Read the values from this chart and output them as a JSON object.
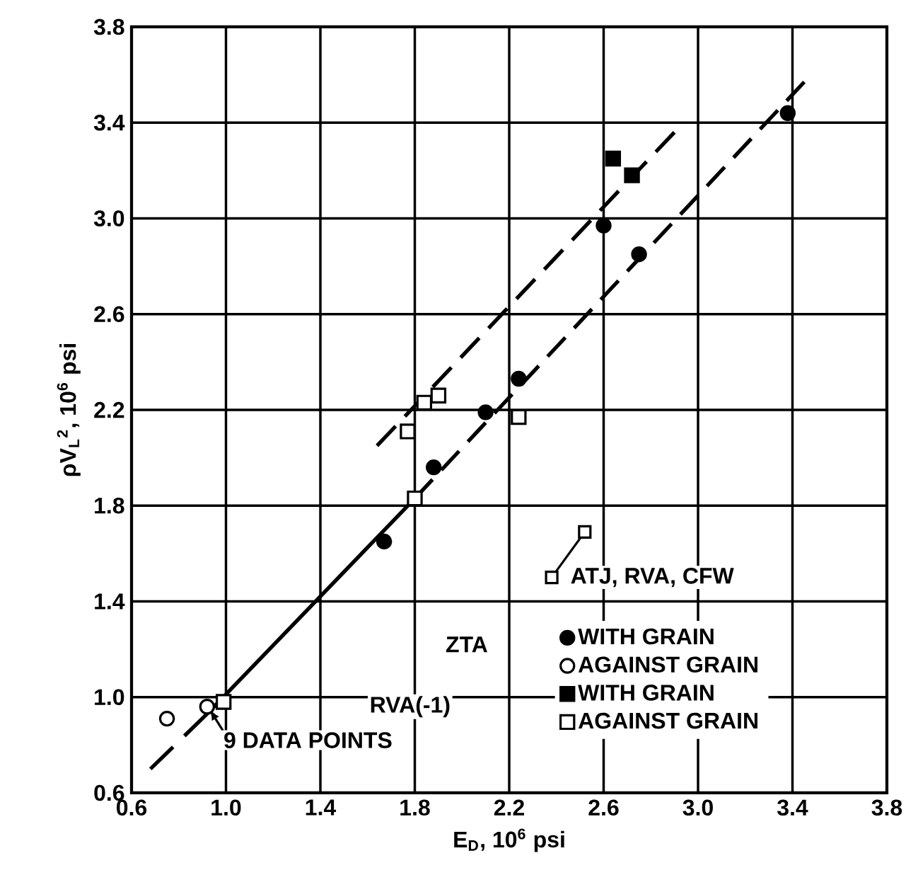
{
  "chart_data": {
    "type": "scatter",
    "xlabel": "E$_{D}$, 10$^{6}$ psi",
    "ylabel": "ρV$_{L}$$^{2}$, 10$^{6}$ psi",
    "xlim": [
      0.6,
      3.8
    ],
    "ylim": [
      0.6,
      3.8
    ],
    "xticks": [
      0.6,
      {
        "value": 1.0,
        "label": "1.0"
      },
      1.4,
      1.8,
      2.2,
      2.6,
      {
        "value": 3.0,
        "label": "3.0"
      },
      3.4,
      3.8
    ],
    "yticks": [
      0.6,
      {
        "value": 1.0,
        "label": "1.0"
      },
      1.4,
      1.8,
      2.2,
      2.6,
      {
        "value": 3.0,
        "label": "3.0"
      },
      3.4,
      3.8
    ],
    "grid": true,
    "legend": "bottom right",
    "series": [
      {
        "name": "WITH GRAIN",
        "marker": "circle",
        "color": "#000000",
        "x": [
          1.67,
          1.88,
          2.1,
          2.24,
          2.6,
          2.75,
          3.38
        ],
        "values": [
          1.65,
          1.96,
          2.19,
          2.33,
          2.97,
          2.85,
          3.44
        ]
      },
      {
        "name": "AGAINST GRAIN",
        "marker": "circle",
        "color": "#ffffff",
        "x": [
          0.75,
          0.92
        ],
        "values": [
          0.91,
          0.96
        ]
      },
      {
        "name": "WITH GRAIN",
        "marker": "square",
        "color": "#000000",
        "x": [
          2.64,
          2.72
        ],
        "values": [
          3.25,
          3.18
        ]
      },
      {
        "name": "AGAINST GRAIN",
        "marker": "square",
        "color": "#ffffff",
        "x": [
          0.99,
          1.8,
          1.77,
          1.84,
          1.9,
          2.24
        ],
        "values": [
          0.98,
          1.83,
          2.11,
          2.23,
          2.26,
          2.17
        ]
      },
      {
        "type": "line",
        "line_style": "dashed",
        "color": "#000000",
        "x": [
          0.68,
          0.92
        ],
        "values": [
          0.7,
          0.93
        ]
      },
      {
        "type": "line",
        "line_style": "dashed",
        "color": "#000000",
        "x": [
          1.8,
          3.45
        ],
        "values": [
          1.83,
          3.57
        ]
      },
      {
        "type": "line",
        "line_style": "solid",
        "color": "#000000",
        "x": [
          0.92,
          1.8
        ],
        "values": [
          0.93,
          1.83
        ]
      },
      {
        "type": "line",
        "line_style": "dashed",
        "color": "#000000",
        "x": [
          1.64,
          2.9
        ],
        "values": [
          2.05,
          3.36
        ]
      }
    ],
    "annotations": [
      "ZTA",
      "RVA(-1)",
      "ATJ, RVA, CFW",
      {
        "text": "9 DATA POINTS",
        "x": 0.93,
        "y": 0.95
      }
    ]
  }
}
